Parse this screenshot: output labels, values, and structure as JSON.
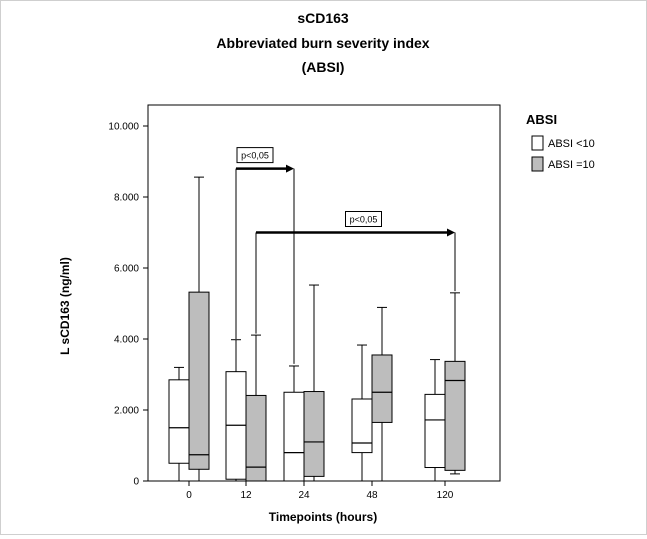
{
  "chart_data": {
    "type": "boxplot",
    "title": [
      "sCD163",
      "Abbreviated burn severity index",
      "(ABSI)"
    ],
    "xlabel": "Timepoints (hours)",
    "ylabel": "L sCD163 (ng/ml)",
    "categories": [
      "0",
      "12",
      "24",
      "48",
      "120"
    ],
    "ylim": [
      0,
      10000
    ],
    "yticks": [
      {
        "value": 0,
        "label": "0"
      },
      {
        "value": 2000,
        "label": "2.000"
      },
      {
        "value": 4000,
        "label": "4.000"
      },
      {
        "value": 6000,
        "label": "6.000"
      },
      {
        "value": 8000,
        "label": "8.000"
      },
      {
        "value": 10000,
        "label": "10.000"
      }
    ],
    "grid": false,
    "legend": {
      "title": "ABSI",
      "position": "right",
      "entries": [
        {
          "label": "ABSI <10",
          "color": "#ffffff"
        },
        {
          "label": "ABSI =10",
          "color": "#bdbdbd"
        }
      ]
    },
    "series": [
      {
        "name": "ABSI <10",
        "color": "#ffffff",
        "boxes": [
          {
            "min": 0,
            "q1": 500,
            "median": 1500,
            "q3": 2850,
            "max": 3200
          },
          {
            "min": 0,
            "q1": 50,
            "median": 1570,
            "q3": 3080,
            "max": 3980
          },
          {
            "min": 0,
            "q1": 0,
            "median": 800,
            "q3": 2500,
            "max": 3240
          },
          {
            "min": 0,
            "q1": 800,
            "median": 1070,
            "q3": 2310,
            "max": 3830
          },
          {
            "min": 0,
            "q1": 380,
            "median": 1720,
            "q3": 2440,
            "max": 3420
          }
        ]
      },
      {
        "name": "ABSI =10",
        "color": "#bdbdbd",
        "boxes": [
          {
            "min": 0,
            "q1": 330,
            "median": 740,
            "q3": 5320,
            "max": 8560
          },
          {
            "min": 0,
            "q1": 0,
            "median": 390,
            "q3": 2410,
            "max": 4110
          },
          {
            "min": 0,
            "q1": 130,
            "median": 1100,
            "q3": 2520,
            "max": 5520
          },
          {
            "min": 0,
            "q1": 1650,
            "median": 2500,
            "q3": 3550,
            "max": 4890
          },
          {
            "min": 200,
            "q1": 300,
            "median": 2830,
            "q3": 3370,
            "max": 5300
          }
        ]
      }
    ],
    "annotations": [
      {
        "label": "p<0,05",
        "from_category": "12",
        "to_category": "24",
        "from_series": 0,
        "to_series": 0,
        "y": 8800,
        "from_top": 4000,
        "to_top": 3300
      },
      {
        "label": "p<0,05",
        "from_category": "12",
        "to_category": "120",
        "from_series": 1,
        "to_series": 1,
        "y": 7000,
        "from_top": 4150,
        "to_top": 5350
      }
    ]
  }
}
